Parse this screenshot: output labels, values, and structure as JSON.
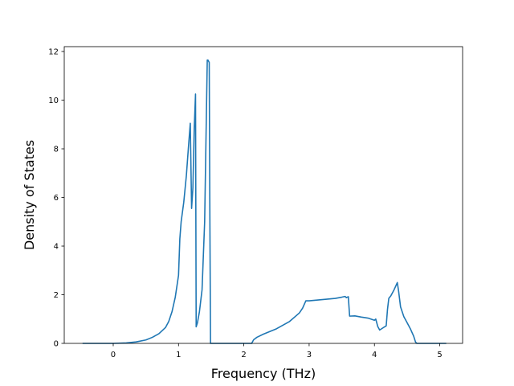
{
  "chart_data": {
    "type": "line",
    "xlabel": "Frequency (THz)",
    "ylabel": "Density of States",
    "xlim": [
      -0.75,
      5.35
    ],
    "ylim": [
      0,
      12.2
    ],
    "xticks": [
      0,
      1,
      2,
      3,
      4,
      5
    ],
    "yticks": [
      0,
      2,
      4,
      6,
      8,
      10,
      12
    ],
    "grid": false,
    "colors": {
      "line": "#1f77b4"
    },
    "series": [
      {
        "x": [
          -0.47,
          -0.2,
          0.0,
          0.2,
          0.35,
          0.5,
          0.6,
          0.7,
          0.8,
          0.85,
          0.9,
          0.95,
          1.0,
          1.02,
          1.04,
          1.08,
          1.12,
          1.15,
          1.18,
          1.2,
          1.22,
          1.24,
          1.26,
          1.27,
          1.29,
          1.32,
          1.36,
          1.4,
          1.44,
          1.45,
          1.47,
          1.48,
          1.49,
          1.5,
          1.7,
          2.0,
          2.12,
          2.15,
          2.2,
          2.3,
          2.5,
          2.7,
          2.85,
          2.9,
          2.95,
          3.0,
          3.2,
          3.4,
          3.5,
          3.55,
          3.57,
          3.6,
          3.62,
          3.7,
          3.8,
          3.9,
          4.0,
          4.02,
          4.05,
          4.08,
          4.12,
          4.18,
          4.2,
          4.22,
          4.25,
          4.3,
          4.35,
          4.37,
          4.4,
          4.45,
          4.5,
          4.55,
          4.6,
          4.63,
          4.65,
          4.8,
          5.1
        ],
        "y": [
          0.0,
          0.0,
          0.0,
          0.02,
          0.06,
          0.14,
          0.25,
          0.4,
          0.65,
          0.9,
          1.3,
          1.9,
          2.8,
          4.3,
          5.0,
          5.8,
          6.9,
          8.0,
          9.05,
          5.55,
          6.4,
          8.8,
          10.25,
          0.68,
          0.85,
          1.3,
          2.2,
          5.0,
          11.65,
          11.65,
          11.55,
          5.2,
          0.0,
          0.0,
          0.0,
          0.0,
          0.0,
          0.15,
          0.25,
          0.38,
          0.6,
          0.9,
          1.25,
          1.45,
          1.75,
          1.75,
          1.8,
          1.85,
          1.9,
          1.93,
          1.88,
          1.92,
          1.12,
          1.13,
          1.08,
          1.04,
          0.95,
          1.0,
          0.7,
          0.55,
          0.62,
          0.72,
          1.4,
          1.85,
          1.95,
          2.2,
          2.5,
          2.15,
          1.5,
          1.1,
          0.85,
          0.6,
          0.3,
          0.05,
          0.0,
          0.0,
          0.0
        ]
      }
    ]
  }
}
